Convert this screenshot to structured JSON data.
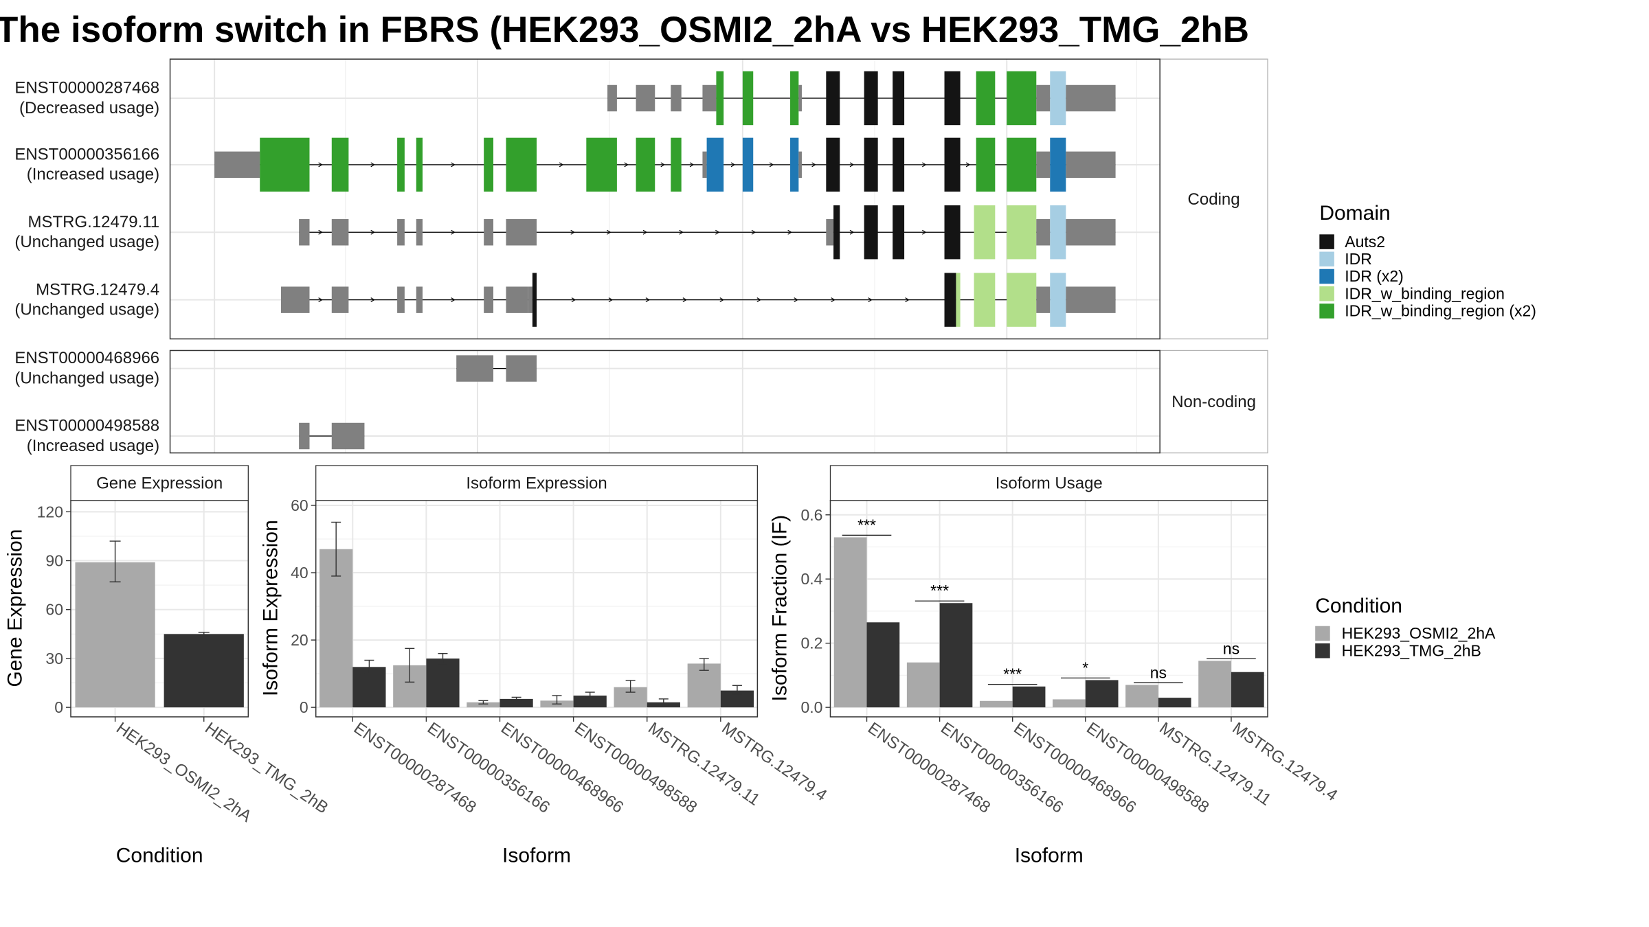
{
  "title": "The isoform switch in FBRS (HEK293_OSMI2_2hA vs HEK293_TMG_2hB",
  "colors": {
    "condition_a": "#a9a9a9",
    "condition_b": "#333333",
    "exon_plain": "#808080",
    "Auts2": "#141414",
    "IDR": "#a6cee3",
    "IDR (x2)": "#1f78b4",
    "IDR_w_binding_region": "#b2df8a",
    "IDR_w_binding_region (x2)": "#33a02c"
  },
  "structure": {
    "facet_coding": "Coding",
    "facet_noncoding": "Non-coding",
    "domain_legend_title": "Domain",
    "domain_legend": [
      "Auts2",
      "IDR",
      "IDR (x2)",
      "IDR_w_binding_region",
      "IDR_w_binding_region (x2)"
    ],
    "coding": [
      {
        "id": "ENST00000287468",
        "status": "(Decreased usage)",
        "exons": [
          [
            575,
            584,
            "plain"
          ],
          [
            602,
            620,
            "plain"
          ],
          [
            635,
            645,
            "plain"
          ],
          [
            665,
            678,
            "plain"
          ],
          [
            678,
            685,
            "IDR_w_binding_region (x2)"
          ],
          [
            703,
            713,
            "IDR_w_binding_region (x2)"
          ],
          [
            748,
            756,
            "IDR_w_binding_region (x2)"
          ],
          [
            756,
            759,
            "plain"
          ],
          [
            782,
            795,
            "Auts2"
          ],
          [
            818,
            831,
            "Auts2"
          ],
          [
            845,
            856,
            "Auts2"
          ],
          [
            894,
            909,
            "Auts2"
          ],
          [
            924,
            942,
            "IDR_w_binding_region (x2)"
          ],
          [
            953,
            981,
            "IDR_w_binding_region (x2)"
          ],
          [
            981,
            994,
            "plain"
          ],
          [
            994,
            1009,
            "IDR"
          ],
          [
            1009,
            1056,
            "plain"
          ]
        ],
        "arrows": false
      },
      {
        "id": "ENST00000356166",
        "status": "(Increased usage)",
        "exons": [
          [
            203,
            246,
            "plain"
          ],
          [
            246,
            293,
            "IDR_w_binding_region (x2)"
          ],
          [
            314,
            330,
            "IDR_w_binding_region (x2)"
          ],
          [
            376,
            383,
            "IDR_w_binding_region (x2)"
          ],
          [
            394,
            400,
            "IDR_w_binding_region (x2)"
          ],
          [
            458,
            467,
            "IDR_w_binding_region (x2)"
          ],
          [
            479,
            508,
            "IDR_w_binding_region (x2)"
          ],
          [
            555,
            584,
            "IDR_w_binding_region (x2)"
          ],
          [
            602,
            620,
            "IDR_w_binding_region (x2)"
          ],
          [
            635,
            645,
            "IDR_w_binding_region (x2)"
          ],
          [
            665,
            669,
            "plain"
          ],
          [
            669,
            685,
            "IDR (x2)"
          ],
          [
            703,
            713,
            "IDR (x2)"
          ],
          [
            748,
            756,
            "IDR (x2)"
          ],
          [
            756,
            759,
            "plain"
          ],
          [
            782,
            795,
            "Auts2"
          ],
          [
            818,
            831,
            "Auts2"
          ],
          [
            845,
            856,
            "Auts2"
          ],
          [
            894,
            909,
            "Auts2"
          ],
          [
            924,
            942,
            "IDR_w_binding_region (x2)"
          ],
          [
            953,
            981,
            "IDR_w_binding_region (x2)"
          ],
          [
            981,
            994,
            "plain"
          ],
          [
            994,
            1009,
            "IDR (x2)"
          ],
          [
            1009,
            1056,
            "plain"
          ]
        ],
        "arrows": true
      },
      {
        "id": "MSTRG.12479.11",
        "status": "(Unchanged usage)",
        "exons": [
          [
            283,
            293,
            "plain"
          ],
          [
            314,
            330,
            "plain"
          ],
          [
            376,
            383,
            "plain"
          ],
          [
            394,
            400,
            "plain"
          ],
          [
            458,
            467,
            "plain"
          ],
          [
            479,
            508,
            "plain"
          ],
          [
            782,
            789,
            "plain"
          ],
          [
            789,
            795,
            "Auts2"
          ],
          [
            818,
            831,
            "Auts2"
          ],
          [
            845,
            856,
            "Auts2"
          ],
          [
            894,
            909,
            "Auts2"
          ],
          [
            922,
            942,
            "IDR_w_binding_region"
          ],
          [
            953,
            981,
            "IDR_w_binding_region"
          ],
          [
            981,
            994,
            "plain"
          ],
          [
            994,
            1009,
            "IDR"
          ],
          [
            1009,
            1056,
            "plain"
          ]
        ],
        "arrows": true
      },
      {
        "id": "MSTRG.12479.4",
        "status": "(Unchanged usage)",
        "exons": [
          [
            266,
            293,
            "plain"
          ],
          [
            314,
            330,
            "plain"
          ],
          [
            376,
            383,
            "plain"
          ],
          [
            394,
            400,
            "plain"
          ],
          [
            458,
            467,
            "plain"
          ],
          [
            479,
            500,
            "plain"
          ],
          [
            500,
            504,
            "plain"
          ],
          [
            504,
            508,
            "Auts2"
          ],
          [
            894,
            905,
            "Auts2"
          ],
          [
            905,
            909,
            "IDR_w_binding_region"
          ],
          [
            922,
            942,
            "IDR_w_binding_region"
          ],
          [
            953,
            981,
            "IDR_w_binding_region"
          ],
          [
            981,
            994,
            "plain"
          ],
          [
            994,
            1009,
            "IDR"
          ],
          [
            1009,
            1056,
            "plain"
          ]
        ],
        "arrows": true
      }
    ],
    "noncoding": [
      {
        "id": "ENST00000468966",
        "status": "(Unchanged usage)",
        "exons": [
          [
            432,
            467,
            "plain"
          ],
          [
            479,
            508,
            "plain"
          ]
        ]
      },
      {
        "id": "ENST00000498588",
        "status": "(Increased usage)",
        "exons": [
          [
            283,
            293,
            "plain"
          ],
          [
            314,
            345,
            "plain"
          ]
        ]
      }
    ]
  },
  "chart_data": [
    {
      "type": "bar",
      "title": "Gene Expression",
      "xlabel": "Condition",
      "ylabel": "Gene Expression",
      "ylim": [
        0,
        126
      ],
      "yticks": [
        0,
        30,
        60,
        90,
        120
      ],
      "categories": [
        "HEK293_OSMI2_2hA",
        "HEK293_TMG_2hB"
      ],
      "values": [
        89,
        45
      ],
      "errors": [
        [
          77,
          102
        ],
        [
          44.5,
          46
        ]
      ]
    },
    {
      "type": "bar",
      "title": "Isoform Expression",
      "xlabel": "Isoform",
      "ylabel": "Isoform Expression",
      "ylim": [
        0,
        61
      ],
      "yticks": [
        0,
        20,
        40,
        60
      ],
      "categories": [
        "ENST00000287468",
        "ENST00000356166",
        "ENST00000468966",
        "ENST00000498588",
        "MSTRG.12479.11",
        "MSTRG.12479.4"
      ],
      "series": [
        {
          "name": "HEK293_OSMI2_2hA",
          "values": [
            47,
            12.5,
            1.5,
            2,
            6,
            13
          ],
          "errors": [
            [
              39,
              55
            ],
            [
              7.5,
              17.5
            ],
            [
              1,
              2
            ],
            [
              1,
              3.5
            ],
            [
              4.5,
              8
            ],
            [
              11,
              14.5
            ]
          ]
        },
        {
          "name": "HEK293_TMG_2hB",
          "values": [
            12,
            14.5,
            2.5,
            3.5,
            1.5,
            5
          ],
          "errors": [
            [
              10,
              14
            ],
            [
              13,
              16
            ],
            [
              2,
              3
            ],
            [
              2.8,
              4.5
            ],
            [
              0.8,
              2.5
            ],
            [
              4,
              6.5
            ]
          ]
        }
      ]
    },
    {
      "type": "bar",
      "title": "Isoform Usage",
      "xlabel": "Isoform",
      "ylabel": "Isoform Fraction (IF)",
      "ylim": [
        0,
        0.64
      ],
      "yticks": [
        0.0,
        0.2,
        0.4,
        0.6
      ],
      "ytick_labels": [
        "0.0",
        "0.2",
        "0.4",
        "0.6"
      ],
      "categories": [
        "ENST00000287468",
        "ENST00000356166",
        "ENST00000468966",
        "ENST00000498588",
        "MSTRG.12479.11",
        "MSTRG.12479.4"
      ],
      "series": [
        {
          "name": "HEK293_OSMI2_2hA",
          "values": [
            0.53,
            0.14,
            0.02,
            0.025,
            0.07,
            0.145
          ]
        },
        {
          "name": "HEK293_TMG_2hB",
          "values": [
            0.265,
            0.325,
            0.065,
            0.085,
            0.03,
            0.11
          ]
        }
      ],
      "significance": [
        "***",
        "***",
        "***",
        "*",
        "ns",
        "ns"
      ]
    }
  ],
  "condition_legend": {
    "title": "Condition",
    "items": [
      "HEK293_OSMI2_2hA",
      "HEK293_TMG_2hB"
    ]
  }
}
